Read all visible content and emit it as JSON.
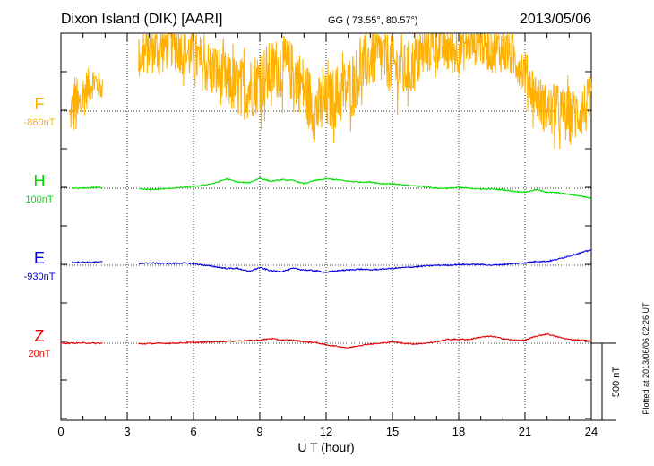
{
  "header": {
    "station": "Dixon Island (DIK)  [AARI]",
    "coords": "GG ( 73.55°,  80.57°)",
    "date": "2013/05/06"
  },
  "footer": {
    "plotted": "Plotted at 2013/06/06 02:26 UT"
  },
  "chart_data": {
    "type": "line",
    "title": "Dixon Island (DIK)  [AARI]",
    "xlabel": "U T (hour)",
    "xlim": [
      0,
      24
    ],
    "xticks": [
      0,
      3,
      6,
      9,
      12,
      15,
      18,
      21,
      24
    ],
    "grid": true,
    "scale_bar": "500 nT",
    "data_gaps_hours": [
      [
        1.9,
        3.5
      ]
    ],
    "colors": {
      "F": "#ffb000",
      "H": "#00e000",
      "E": "#0000e0",
      "Z": "#e00000"
    },
    "series": [
      {
        "name": "F",
        "baseline": "-860nT",
        "x": [
          0.4,
          0.6,
          0.8,
          1.0,
          1.2,
          1.5,
          1.8,
          3.6,
          4.0,
          4.5,
          5.0,
          5.5,
          6.0,
          6.5,
          7.0,
          7.5,
          8.0,
          8.5,
          9.0,
          9.5,
          10.0,
          10.5,
          11.0,
          11.5,
          12.0,
          12.5,
          13.0,
          13.5,
          14.0,
          14.5,
          15.0,
          15.5,
          16.0,
          16.5,
          17.0,
          17.5,
          18.0,
          18.5,
          19.0,
          19.5,
          20.0,
          20.5,
          21.0,
          21.5,
          22.0,
          22.5,
          23.0,
          23.5,
          24.0
        ],
        "y": [
          -50,
          50,
          0,
          100,
          150,
          200,
          150,
          350,
          400,
          400,
          450,
          400,
          350,
          300,
          250,
          200,
          150,
          150,
          200,
          250,
          300,
          250,
          150,
          0,
          50,
          100,
          150,
          250,
          350,
          350,
          300,
          250,
          300,
          400,
          450,
          400,
          400,
          450,
          450,
          400,
          400,
          350,
          250,
          100,
          0,
          0,
          -50,
          0,
          50
        ],
        "amplitude": [
          100,
          220,
          200,
          160,
          130,
          100,
          80,
          150,
          160,
          170,
          170,
          170,
          180,
          180,
          190,
          190,
          200,
          210,
          210,
          210,
          200,
          200,
          210,
          220,
          200,
          210,
          210,
          200,
          200,
          200,
          190,
          190,
          190,
          180,
          180,
          170,
          170,
          160,
          160,
          160,
          150,
          150,
          150,
          160,
          170,
          180,
          180,
          180,
          180
        ]
      },
      {
        "name": "H",
        "baseline": "100nT",
        "x": [
          0.5,
          1.0,
          1.5,
          1.9,
          3.5,
          4.0,
          4.5,
          5.0,
          5.5,
          6.0,
          6.5,
          7.0,
          7.5,
          8.0,
          8.5,
          9.0,
          9.5,
          10.0,
          10.5,
          11.0,
          11.5,
          12.0,
          12.5,
          13.0,
          13.5,
          14.0,
          14.5,
          15.0,
          15.5,
          16.0,
          16.5,
          17.0,
          17.5,
          18.0,
          18.5,
          19.0,
          19.5,
          20.0,
          20.5,
          21.0,
          21.5,
          22.0,
          22.5,
          23.0,
          23.5,
          24.0
        ],
        "y": [
          0,
          0,
          5,
          5,
          0,
          -10,
          -5,
          0,
          5,
          10,
          20,
          35,
          60,
          40,
          35,
          65,
          45,
          55,
          50,
          30,
          50,
          60,
          55,
          45,
          40,
          40,
          30,
          30,
          20,
          15,
          10,
          0,
          0,
          5,
          0,
          -5,
          -5,
          -10,
          -20,
          -25,
          -10,
          -25,
          -30,
          -40,
          -50,
          -65
        ]
      },
      {
        "name": "E",
        "baseline": "-930nT",
        "x": [
          0.5,
          1.0,
          1.5,
          1.9,
          3.5,
          4.0,
          4.5,
          5.0,
          5.5,
          6.0,
          6.5,
          7.0,
          7.5,
          8.0,
          8.5,
          9.0,
          9.5,
          10.0,
          10.5,
          11.0,
          11.5,
          12.0,
          12.5,
          13.0,
          13.5,
          14.0,
          14.5,
          15.0,
          15.5,
          16.0,
          16.5,
          17.0,
          17.5,
          18.0,
          18.5,
          19.0,
          19.5,
          20.0,
          20.5,
          21.0,
          21.5,
          22.0,
          22.5,
          23.0,
          23.5,
          24.0
        ],
        "y": [
          20,
          20,
          20,
          22,
          10,
          15,
          12,
          12,
          14,
          10,
          0,
          -10,
          -20,
          -20,
          -40,
          -15,
          -35,
          -40,
          -20,
          -30,
          -35,
          -45,
          -35,
          -30,
          -25,
          -30,
          -25,
          -20,
          -15,
          -10,
          -5,
          0,
          0,
          5,
          5,
          5,
          0,
          5,
          10,
          15,
          25,
          25,
          40,
          60,
          80,
          100
        ]
      },
      {
        "name": "Z",
        "baseline": "20nT",
        "x": [
          0.0,
          0.5,
          1.0,
          1.5,
          1.9,
          3.5,
          4.0,
          5.0,
          6.0,
          7.0,
          8.0,
          9.0,
          9.5,
          10.0,
          10.5,
          11.0,
          11.5,
          12.0,
          12.5,
          13.0,
          13.5,
          14.0,
          14.5,
          15.0,
          15.5,
          16.0,
          16.5,
          17.0,
          17.5,
          18.0,
          18.5,
          19.0,
          19.5,
          20.0,
          20.5,
          21.0,
          21.5,
          22.0,
          22.5,
          23.0,
          23.5,
          24.0
        ],
        "y": [
          0,
          0,
          2,
          0,
          0,
          -5,
          -2,
          0,
          5,
          10,
          15,
          20,
          30,
          20,
          20,
          10,
          5,
          -10,
          -20,
          -30,
          -15,
          -5,
          0,
          10,
          0,
          -5,
          0,
          10,
          25,
          25,
          25,
          40,
          45,
          30,
          20,
          20,
          45,
          60,
          40,
          25,
          20,
          15
        ]
      }
    ]
  }
}
